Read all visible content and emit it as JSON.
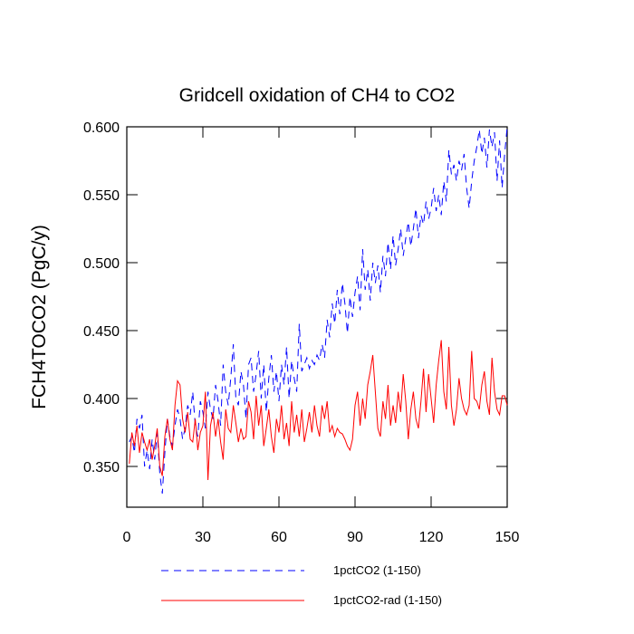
{
  "chart_data": {
    "type": "line",
    "title": "Gridcell oxidation of CH4 to CO2",
    "y_label": "FCH4TOCO2  (PgC/y)",
    "x": [
      1,
      2,
      3,
      4,
      5,
      6,
      7,
      8,
      9,
      10,
      11,
      12,
      13,
      14,
      15,
      16,
      17,
      18,
      19,
      20,
      21,
      22,
      23,
      24,
      25,
      26,
      27,
      28,
      29,
      30,
      31,
      32,
      33,
      34,
      35,
      36,
      37,
      38,
      39,
      40,
      41,
      42,
      43,
      44,
      45,
      46,
      47,
      48,
      49,
      50,
      51,
      52,
      53,
      54,
      55,
      56,
      57,
      58,
      59,
      60,
      61,
      62,
      63,
      64,
      65,
      66,
      67,
      68,
      69,
      70,
      71,
      72,
      73,
      74,
      75,
      76,
      77,
      78,
      79,
      80,
      81,
      82,
      83,
      84,
      85,
      86,
      87,
      88,
      89,
      90,
      91,
      92,
      93,
      94,
      95,
      96,
      97,
      98,
      99,
      100,
      101,
      102,
      103,
      104,
      105,
      106,
      107,
      108,
      109,
      110,
      111,
      112,
      113,
      114,
      115,
      116,
      117,
      118,
      119,
      120,
      121,
      122,
      123,
      124,
      125,
      126,
      127,
      128,
      129,
      130,
      131,
      132,
      133,
      134,
      135,
      136,
      137,
      138,
      139,
      140,
      141,
      142,
      143,
      144,
      145,
      146,
      147,
      148,
      149,
      150
    ],
    "series": [
      {
        "name": "1pctCO2 (1-150)",
        "color": "#0000ff",
        "line_style": "dashed",
        "values": [
          0.368,
          0.372,
          0.36,
          0.385,
          0.378,
          0.388,
          0.35,
          0.362,
          0.348,
          0.37,
          0.355,
          0.375,
          0.345,
          0.33,
          0.36,
          0.385,
          0.372,
          0.365,
          0.38,
          0.392,
          0.385,
          0.37,
          0.378,
          0.395,
          0.388,
          0.405,
          0.38,
          0.372,
          0.398,
          0.39,
          0.378,
          0.405,
          0.392,
          0.385,
          0.41,
          0.398,
          0.38,
          0.425,
          0.405,
          0.395,
          0.415,
          0.44,
          0.4,
          0.395,
          0.42,
          0.41,
          0.385,
          0.425,
          0.43,
          0.405,
          0.418,
          0.435,
          0.4,
          0.425,
          0.39,
          0.415,
          0.432,
          0.405,
          0.42,
          0.398,
          0.425,
          0.41,
          0.438,
          0.4,
          0.428,
          0.415,
          0.405,
          0.455,
          0.42,
          0.425,
          0.43,
          0.422,
          0.428,
          0.425,
          0.432,
          0.428,
          0.44,
          0.43,
          0.458,
          0.445,
          0.47,
          0.455,
          0.48,
          0.462,
          0.485,
          0.47,
          0.448,
          0.475,
          0.46,
          0.478,
          0.49,
          0.465,
          0.51,
          0.48,
          0.495,
          0.472,
          0.5,
          0.485,
          0.498,
          0.478,
          0.505,
          0.49,
          0.515,
          0.495,
          0.52,
          0.498,
          0.51,
          0.525,
          0.505,
          0.518,
          0.53,
          0.512,
          0.525,
          0.54,
          0.518,
          0.535,
          0.528,
          0.545,
          0.532,
          0.54,
          0.555,
          0.538,
          0.55,
          0.535,
          0.56,
          0.545,
          0.583,
          0.565,
          0.572,
          0.56,
          0.575,
          0.568,
          0.58,
          0.555,
          0.54,
          0.56,
          0.575,
          0.585,
          0.598,
          0.58,
          0.592,
          0.57,
          0.598,
          0.585,
          0.596,
          0.56,
          0.59,
          0.555,
          0.58,
          0.6
        ]
      },
      {
        "name": "1pctCO2-rad (1-150)",
        "color": "#ff0000",
        "line_style": "solid",
        "values": [
          0.352,
          0.375,
          0.365,
          0.38,
          0.36,
          0.375,
          0.368,
          0.362,
          0.37,
          0.355,
          0.365,
          0.378,
          0.35,
          0.343,
          0.372,
          0.385,
          0.37,
          0.362,
          0.395,
          0.413,
          0.41,
          0.385,
          0.375,
          0.39,
          0.37,
          0.368,
          0.385,
          0.362,
          0.375,
          0.38,
          0.405,
          0.34,
          0.38,
          0.39,
          0.372,
          0.385,
          0.368,
          0.355,
          0.392,
          0.378,
          0.375,
          0.395,
          0.382,
          0.368,
          0.378,
          0.37,
          0.372,
          0.398,
          0.39,
          0.37,
          0.402,
          0.38,
          0.395,
          0.365,
          0.378,
          0.392,
          0.372,
          0.36,
          0.385,
          0.375,
          0.395,
          0.37,
          0.382,
          0.365,
          0.398,
          0.375,
          0.388,
          0.372,
          0.392,
          0.368,
          0.378,
          0.39,
          0.375,
          0.395,
          0.38,
          0.372,
          0.395,
          0.385,
          0.398,
          0.375,
          0.38,
          0.372,
          0.378,
          0.375,
          0.374,
          0.37,
          0.365,
          0.362,
          0.37,
          0.395,
          0.405,
          0.38,
          0.4,
          0.385,
          0.41,
          0.42,
          0.432,
          0.405,
          0.378,
          0.372,
          0.398,
          0.385,
          0.41,
          0.38,
          0.395,
          0.382,
          0.405,
          0.39,
          0.418,
          0.398,
          0.37,
          0.392,
          0.405,
          0.385,
          0.378,
          0.398,
          0.422,
          0.39,
          0.418,
          0.4,
          0.382,
          0.41,
          0.428,
          0.443,
          0.405,
          0.392,
          0.438,
          0.395,
          0.38,
          0.392,
          0.415,
          0.4,
          0.392,
          0.388,
          0.395,
          0.435,
          0.4,
          0.398,
          0.392,
          0.41,
          0.42,
          0.398,
          0.388,
          0.43,
          0.405,
          0.392,
          0.388,
          0.402,
          0.402,
          0.395
        ]
      }
    ],
    "xlim": [
      0,
      150
    ],
    "xticks": [
      0,
      30,
      60,
      90,
      120,
      150
    ],
    "ylim": [
      0.32,
      0.6
    ],
    "yticks": [
      {
        "value": 0.35,
        "label": "0.350"
      },
      {
        "value": 0.4,
        "label": "0.400"
      },
      {
        "value": 0.45,
        "label": "0.450"
      },
      {
        "value": 0.5,
        "label": "0.500"
      },
      {
        "value": 0.55,
        "label": "0.550"
      },
      {
        "value": 0.6,
        "label": "0.600"
      }
    ],
    "legend": "bottom"
  }
}
